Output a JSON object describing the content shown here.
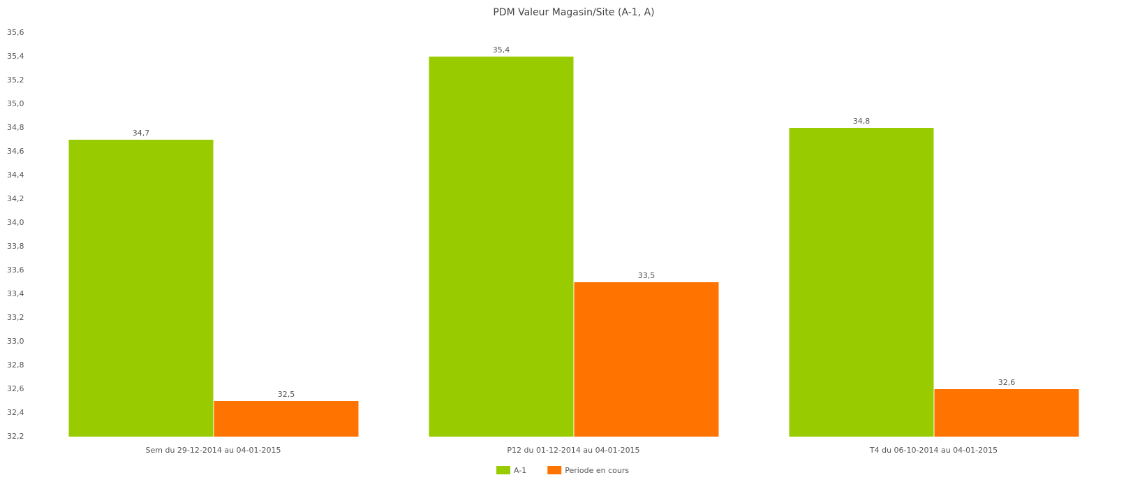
{
  "chart_data": {
    "type": "bar",
    "title": "PDM Valeur Magasin/Site (A-1, A)",
    "categories": [
      "Sem du 29-12-2014 au 04-01-2015",
      "P12 du 01-12-2014 au 04-01-2015",
      "T4 du 06-10-2014 au 04-01-2015"
    ],
    "series": [
      {
        "name": "A-1",
        "color": "#99cc00",
        "values": [
          34.7,
          35.4,
          34.8
        ],
        "value_labels": [
          "34,7",
          "35,4",
          "34,8"
        ]
      },
      {
        "name": "Periode en cours",
        "color": "#ff7300",
        "values": [
          32.5,
          33.5,
          32.6
        ],
        "value_labels": [
          "32,5",
          "33,5",
          "32,6"
        ]
      }
    ],
    "ylim": [
      32.2,
      35.6
    ],
    "yticks": [
      {
        "value": 32.2,
        "label": "32,2"
      },
      {
        "value": 32.4,
        "label": "32,4"
      },
      {
        "value": 32.6,
        "label": "32,6"
      },
      {
        "value": 32.8,
        "label": "32,8"
      },
      {
        "value": 33.0,
        "label": "33,0"
      },
      {
        "value": 33.2,
        "label": "33,2"
      },
      {
        "value": 33.4,
        "label": "33,4"
      },
      {
        "value": 33.6,
        "label": "33,6"
      },
      {
        "value": 33.8,
        "label": "33,8"
      },
      {
        "value": 34.0,
        "label": "34,0"
      },
      {
        "value": 34.2,
        "label": "34,2"
      },
      {
        "value": 34.4,
        "label": "34,4"
      },
      {
        "value": 34.6,
        "label": "34,6"
      },
      {
        "value": 34.8,
        "label": "34,8"
      },
      {
        "value": 35.0,
        "label": "35,0"
      },
      {
        "value": 35.2,
        "label": "35,2"
      },
      {
        "value": 35.4,
        "label": "35,4"
      },
      {
        "value": 35.6,
        "label": "35,6"
      }
    ],
    "grid": false,
    "legend": "bottom"
  }
}
